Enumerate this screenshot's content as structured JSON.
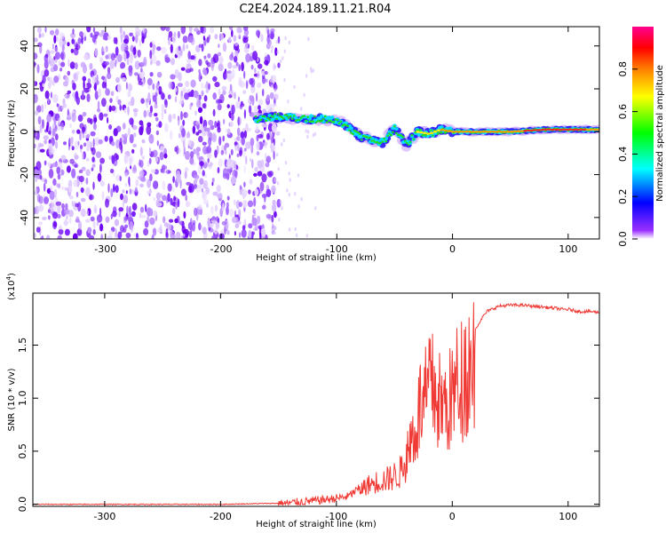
{
  "chart_data": [
    {
      "type": "heatmap",
      "title": "C2E4.2024.189.11.21.R04",
      "xlabel": "Height of straight line (km)",
      "ylabel": "Frequency (Hz)",
      "xlim": [
        -362,
        127
      ],
      "ylim": [
        -50,
        49
      ],
      "x_ticks": [
        -300,
        -200,
        -100,
        0,
        100
      ],
      "y_ticks": [
        -40,
        -20,
        0,
        20,
        40
      ],
      "colorbar": {
        "label": "Normalized spectral amplitude",
        "range": [
          0,
          1
        ],
        "ticks": [
          "0.0",
          "0.2",
          "0.4",
          "0.6",
          "0.8"
        ],
        "colors": [
          "#ffffff",
          "#7f00ff",
          "#0000ff",
          "#00ffff",
          "#00ff00",
          "#ffff00",
          "#ff8000",
          "#ff0000",
          "#ff0080"
        ]
      },
      "noise_region_x": [
        -362,
        -158
      ],
      "signal_track": [
        {
          "x": -170,
          "y": 6
        },
        {
          "x": -150,
          "y": 7
        },
        {
          "x": -130,
          "y": 6
        },
        {
          "x": -110,
          "y": 6
        },
        {
          "x": -95,
          "y": 4
        },
        {
          "x": -80,
          "y": -2
        },
        {
          "x": -70,
          "y": -4
        },
        {
          "x": -60,
          "y": -5
        },
        {
          "x": -50,
          "y": 2
        },
        {
          "x": -40,
          "y": -6
        },
        {
          "x": -30,
          "y": 0
        },
        {
          "x": -20,
          "y": -1
        },
        {
          "x": -10,
          "y": 1
        },
        {
          "x": 0,
          "y": 0
        },
        {
          "x": 20,
          "y": 0
        },
        {
          "x": 50,
          "y": 0
        },
        {
          "x": 80,
          "y": 1
        },
        {
          "x": 100,
          "y": 1
        },
        {
          "x": 127,
          "y": 1
        }
      ]
    },
    {
      "type": "line",
      "xlabel": "Height of straight line (km)",
      "ylabel": "SNR (10 * v/v)",
      "y_multiplier": "(x10",
      "y_multiplier_exp": "4",
      "xlim": [
        -362,
        127
      ],
      "ylim": [
        -0.02,
        1.99
      ],
      "x_ticks": [
        -300,
        -200,
        -100,
        0,
        100
      ],
      "y_ticks": [
        "0.0",
        "0.5",
        "1.0",
        "1.5"
      ],
      "line_color": "#f03a35",
      "series": [
        {
          "x": [
            -362,
            -300,
            -200,
            -150,
            -130,
            -110,
            -90,
            -75,
            -65,
            -55,
            -45,
            -40,
            -35,
            -30,
            -28,
            -25,
            -22,
            -20,
            -15,
            -10,
            -5,
            0,
            5,
            10,
            15,
            20,
            25,
            30,
            40,
            50,
            60,
            70,
            80,
            90,
            95,
            100,
            110,
            120,
            127
          ],
          "y": [
            0.0,
            0.0,
            0.0,
            0.01,
            0.03,
            0.05,
            0.08,
            0.2,
            0.25,
            0.28,
            0.35,
            0.5,
            0.75,
            0.9,
            1.1,
            1.05,
            1.2,
            1.3,
            1.25,
            1.1,
            1.08,
            1.2,
            1.35,
            1.45,
            1.55,
            1.65,
            1.75,
            1.82,
            1.87,
            1.88,
            1.88,
            1.87,
            1.86,
            1.85,
            1.84,
            1.84,
            1.82,
            1.82,
            1.81
          ]
        }
      ]
    }
  ]
}
